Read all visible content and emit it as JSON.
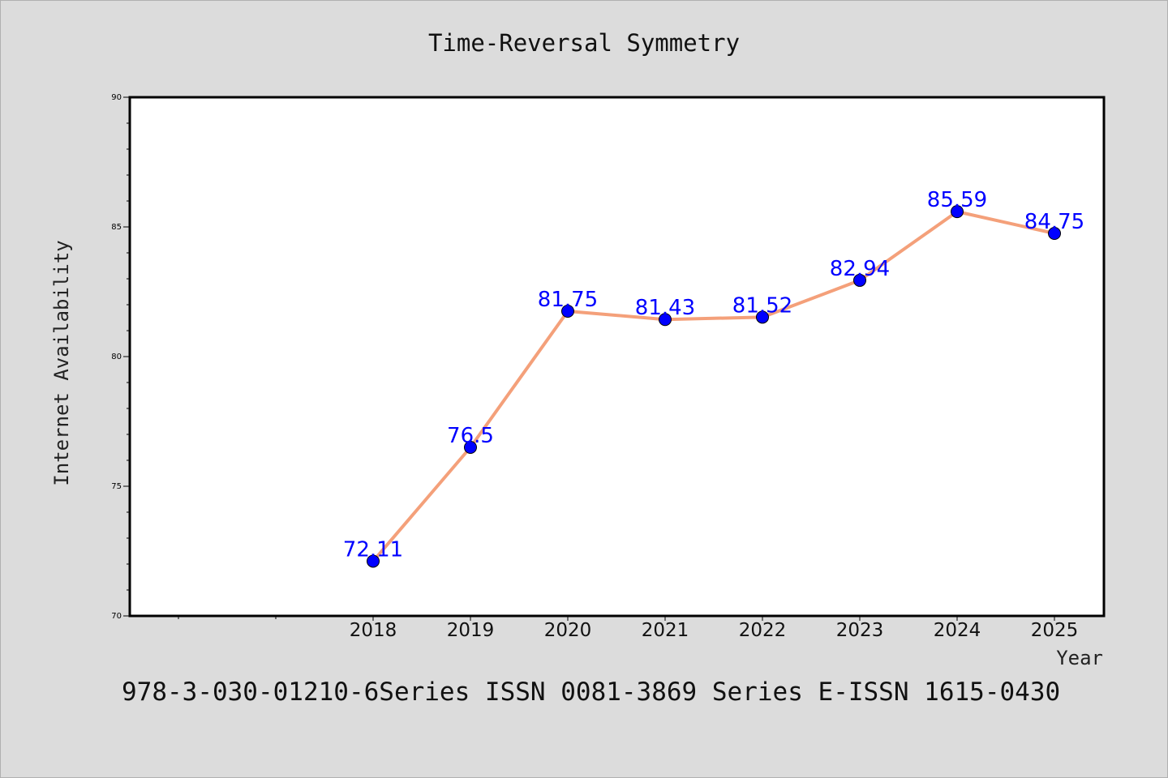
{
  "chart_data": {
    "type": "line",
    "title": "Time-Reversal Symmetry",
    "xlabel": "Year",
    "ylabel": "Internet Availability",
    "categories": [
      "2018",
      "2019",
      "2020",
      "2021",
      "2022",
      "2023",
      "2024",
      "2025"
    ],
    "series": [
      {
        "values": [
          72.11,
          76.5,
          81.75,
          81.43,
          81.52,
          82.94,
          85.59,
          84.75
        ],
        "line_color": "#f4a07a",
        "marker_color": "#0000ff"
      }
    ],
    "ylim": [
      70,
      90
    ],
    "yticks": [
      "70",
      "75",
      "80",
      "85",
      "90"
    ],
    "data_labels": [
      "72.11",
      "76.5",
      "81.75",
      "81.43",
      "81.52",
      "82.94",
      "85.59",
      "84.75"
    ],
    "data_label_color": "#0000ff",
    "grid": false,
    "legend": "none"
  },
  "footer": "978-3-030-01210-6Series ISSN 0081-3869 Series E-ISSN 1615-0430"
}
